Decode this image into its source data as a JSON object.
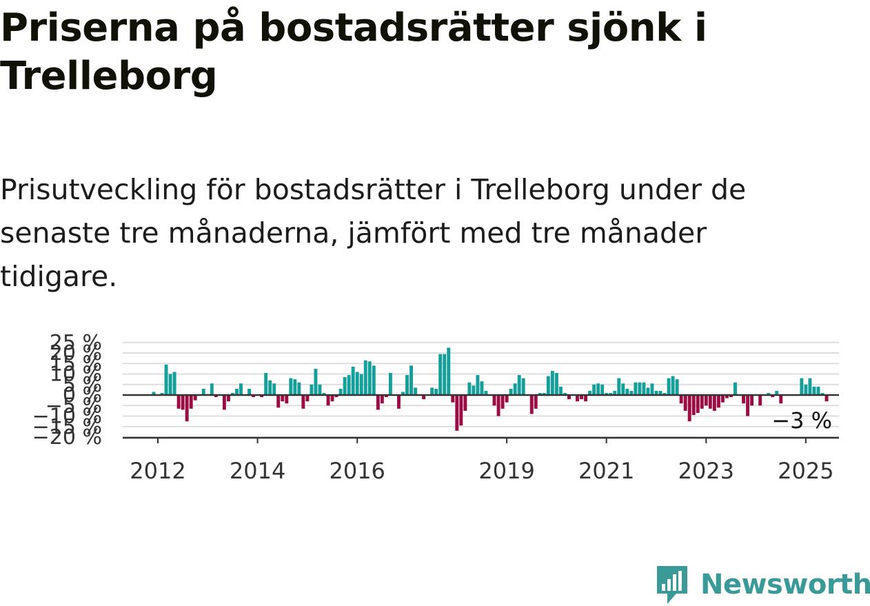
{
  "title": "Priserna på bostadsrätter sjönk i Trelleborg",
  "subtitle": "Prisutveckling för bostadsrätter i Trelleborg under de senaste tre månaderna, jämfört med tre månader tidigare.",
  "brand": {
    "name": "Newsworthy",
    "icon": "newsworthy-logo-icon",
    "color": "#3a9a97"
  },
  "colors": {
    "positive": "#159f9a",
    "negative": "#9b0b44",
    "grid": "#dddddd",
    "zero": "#333333"
  },
  "chart_data": {
    "type": "bar",
    "title": "",
    "xlabel": "",
    "ylabel": "",
    "ylim": [
      -21,
      26
    ],
    "y_ticks": [
      25,
      20,
      15,
      10,
      5,
      0,
      -5,
      -10,
      -15,
      -20
    ],
    "y_tick_labels": [
      "25 %",
      "20 %",
      "15 %",
      "10 %",
      "5 %",
      "0 %",
      "−5 %",
      "−10 %",
      "−15 %",
      "−20 %"
    ],
    "x_ticks": [
      "2012",
      "2014",
      "2016",
      "2019",
      "2021",
      "2023",
      "2025"
    ],
    "x_tick_years": [
      2012,
      2014,
      2016,
      2019,
      2021,
      2023,
      2025
    ],
    "x_start": "2011-09",
    "annotation": "−3 %",
    "values": [
      0,
      0,
      0,
      1.5,
      0,
      1,
      14.5,
      10,
      11,
      -6.5,
      -7,
      -12.5,
      -6.5,
      -2.5,
      0,
      3,
      0.5,
      5.5,
      -1,
      0,
      -7,
      -3,
      1,
      3,
      5.5,
      0,
      3,
      -1,
      0,
      -1,
      10.5,
      7,
      5.5,
      -6,
      -3,
      -4,
      8,
      7.5,
      6,
      -6.5,
      -3,
      5,
      12.5,
      5,
      1,
      -5,
      -3,
      -1,
      3,
      8.5,
      9.5,
      13.5,
      11,
      10,
      16.5,
      16,
      14,
      -7,
      -4,
      -1,
      10.5,
      0,
      -6.5,
      1.5,
      9.5,
      14,
      3.5,
      0,
      -2,
      0,
      3.5,
      3,
      19.5,
      19.5,
      22.5,
      -3.5,
      -17,
      -14.5,
      -7.5,
      6,
      4.5,
      9.5,
      6.5,
      2,
      0,
      -5,
      -10,
      -6.5,
      -3.5,
      3,
      5.5,
      9.5,
      8,
      0,
      -9,
      -6.5,
      1,
      1,
      9,
      11.5,
      10.5,
      4,
      1,
      -2,
      0,
      -3,
      -2,
      -3,
      2,
      5,
      5.5,
      5,
      1,
      1,
      2,
      8,
      5.5,
      3,
      2,
      6,
      6,
      6,
      3.5,
      5.5,
      2,
      2,
      1,
      8,
      9,
      7.5,
      -4,
      -7.5,
      -12.5,
      -9.5,
      -8.5,
      -6.5,
      -5,
      -6.5,
      -7.5,
      -6,
      -3.5,
      -1.5,
      -1,
      6,
      0,
      -4,
      -10,
      -5,
      0,
      -5,
      0,
      1,
      -1,
      2,
      -4,
      0,
      0,
      0,
      0,
      8,
      5,
      8,
      4,
      4,
      1,
      -3,
      0
    ]
  }
}
